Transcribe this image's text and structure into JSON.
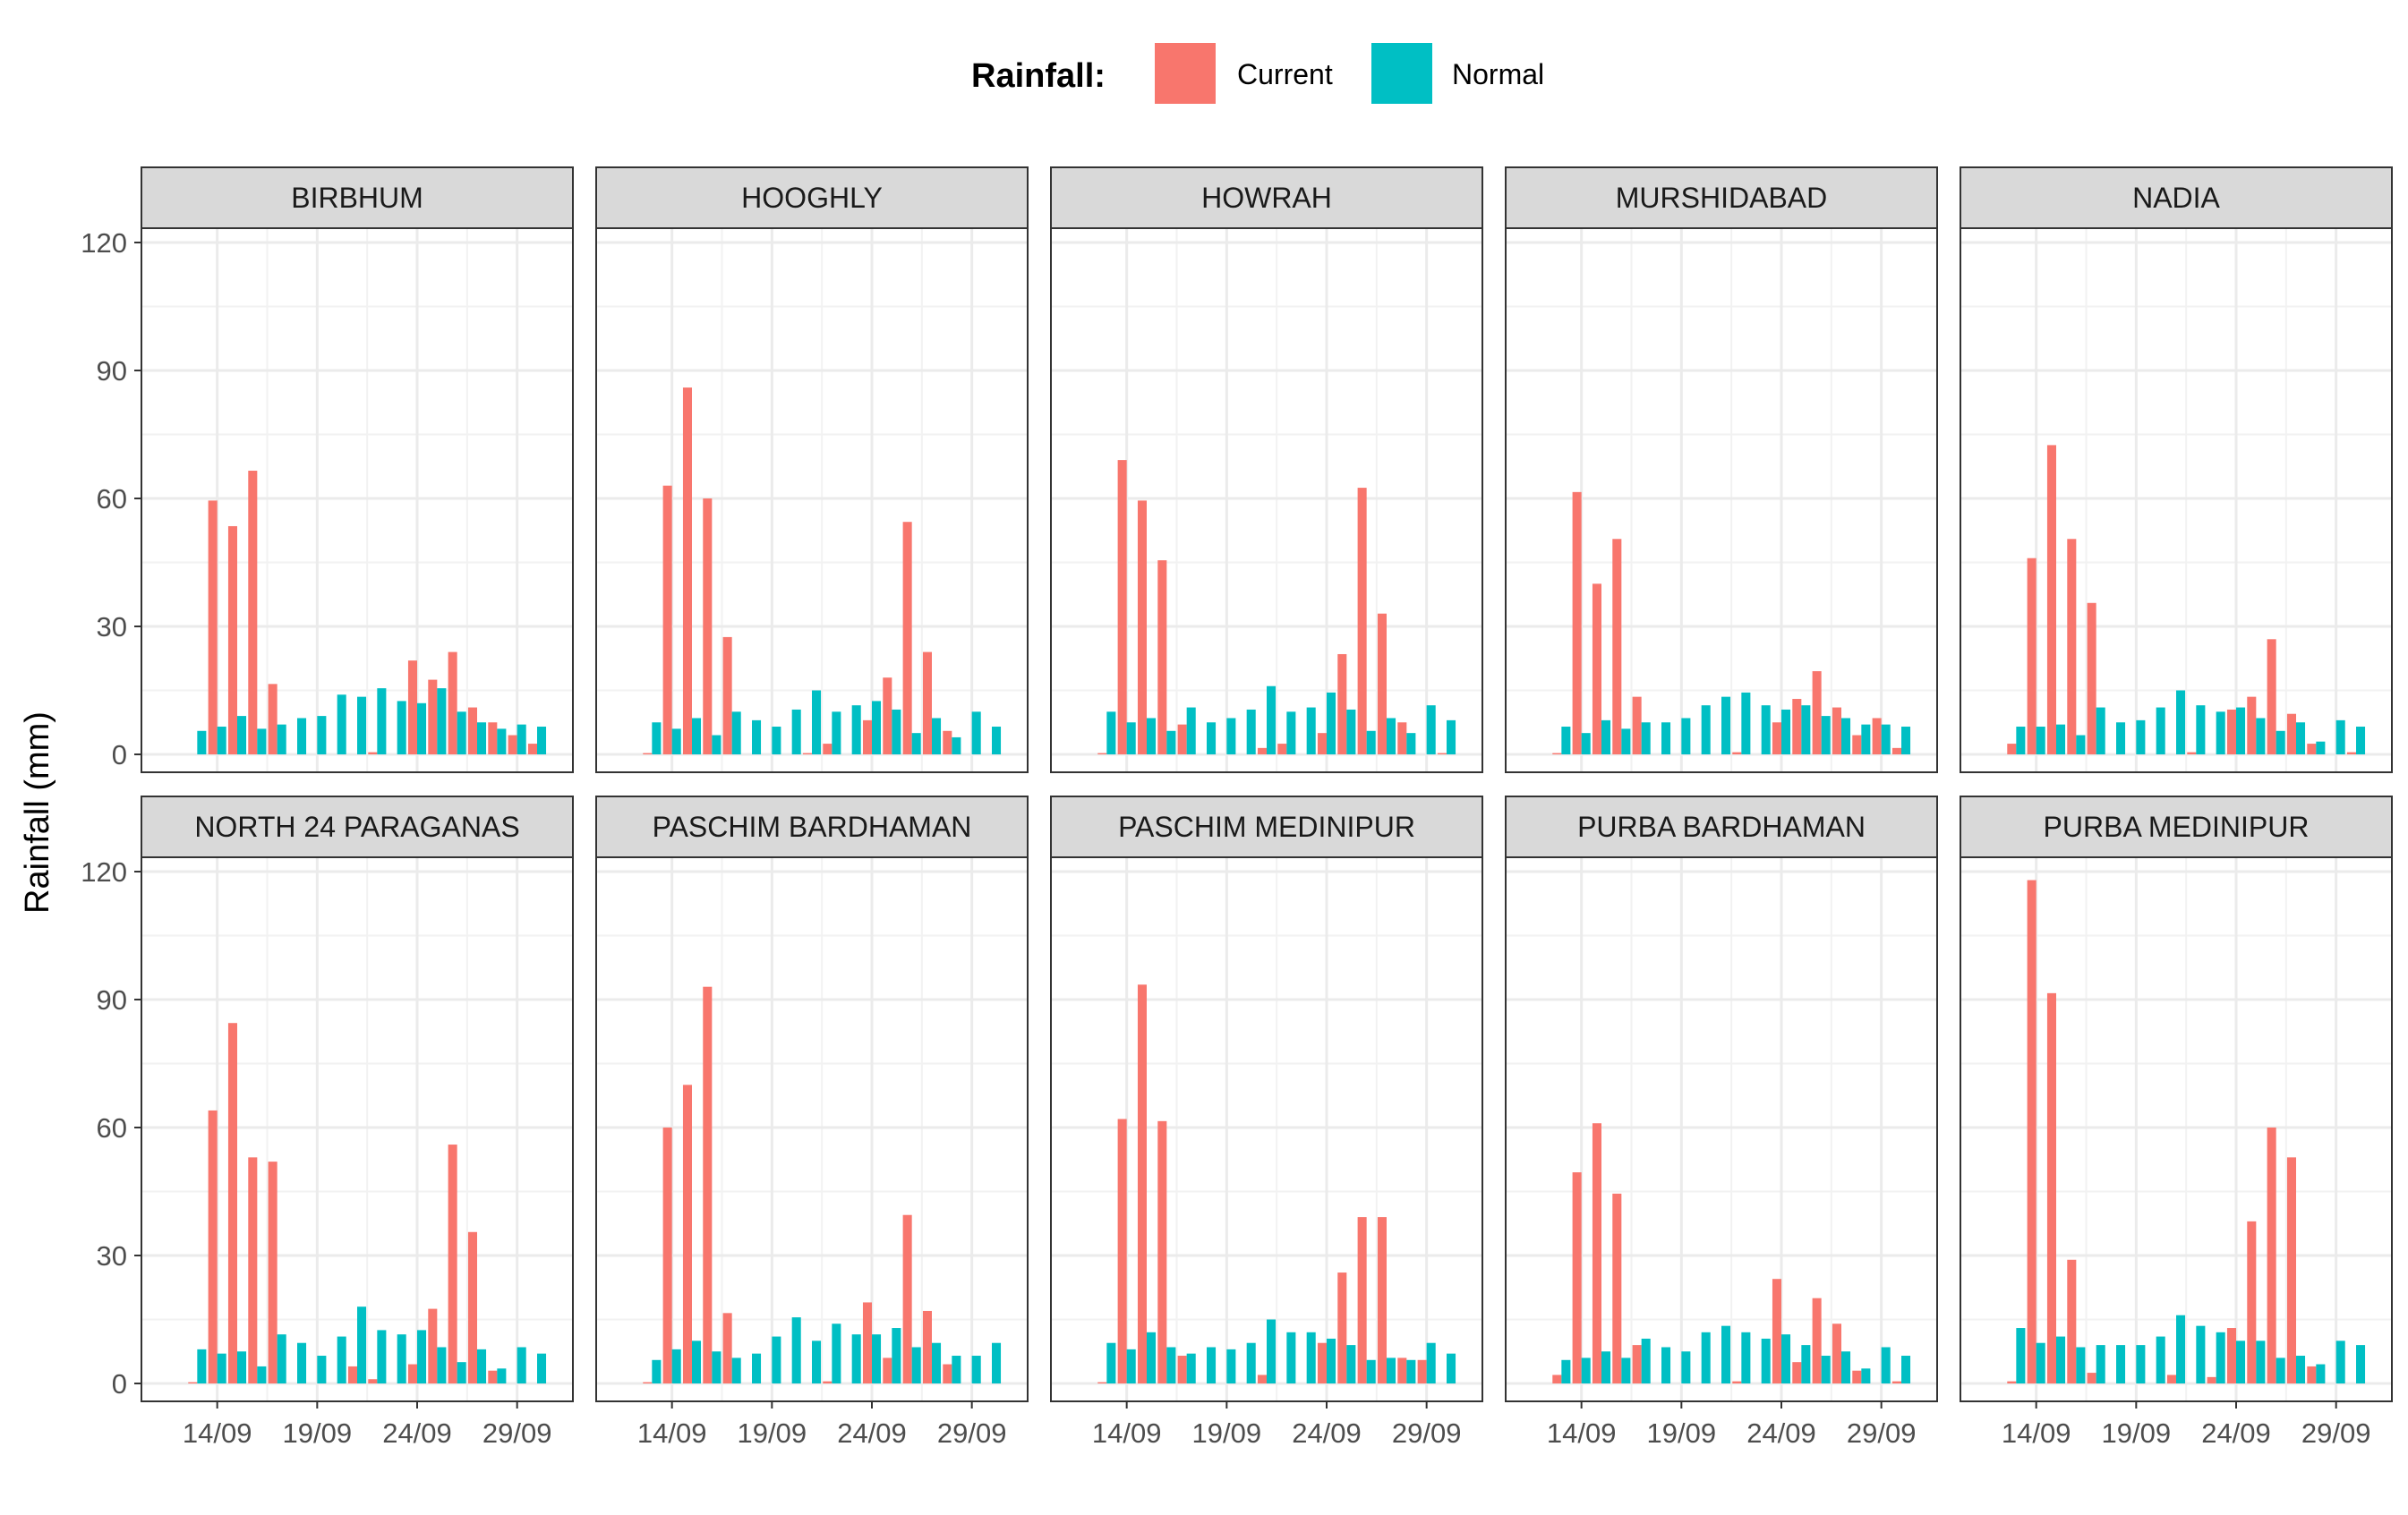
{
  "chart_data": {
    "type": "bar",
    "facet_by": "district",
    "layout": {
      "rows": 2,
      "cols": 5
    },
    "ylabel": "Rainfall (mm)",
    "xlabel": "",
    "ylim": [
      0,
      120
    ],
    "yticks": [
      0,
      30,
      60,
      90,
      120
    ],
    "xlim": [
      "2024-09-12",
      "2024-09-30"
    ],
    "xticks": [
      "2024-09-14",
      "2024-09-19",
      "2024-09-24",
      "2024-09-29"
    ],
    "xtick_labels": [
      "14/09",
      "19/09",
      "24/09",
      "29/09"
    ],
    "grid": true,
    "legend": {
      "title": "Rainfall:",
      "placement": "top",
      "entries": [
        "Current",
        "Normal"
      ]
    },
    "colors": {
      "Current": "#F8766D",
      "Normal": "#00BFC4"
    },
    "dates": [
      "2024-09-13",
      "2024-09-14",
      "2024-09-15",
      "2024-09-16",
      "2024-09-17",
      "2024-09-18",
      "2024-09-19",
      "2024-09-20",
      "2024-09-21",
      "2024-09-22",
      "2024-09-23",
      "2024-09-24",
      "2024-09-25",
      "2024-09-26",
      "2024-09-27",
      "2024-09-28",
      "2024-09-29",
      "2024-09-30"
    ],
    "panels": [
      {
        "district": "BIRBHUM",
        "current": [
          0,
          59.5,
          53.5,
          66.5,
          16.5,
          0,
          0,
          0,
          0,
          0.5,
          0,
          22,
          17.5,
          24,
          11,
          7.5,
          4.5,
          2.5
        ],
        "normal": [
          5.5,
          6.5,
          9,
          6,
          7,
          8.5,
          9,
          14,
          13.5,
          15.5,
          12.5,
          12,
          15.5,
          10,
          7.5,
          6,
          7,
          6.5
        ]
      },
      {
        "district": "HOOGHLY",
        "current": [
          0.3,
          63,
          86,
          60,
          27.5,
          0,
          0,
          0,
          0.3,
          2.5,
          0,
          8,
          18,
          54.5,
          24,
          5.5,
          0,
          0
        ],
        "normal": [
          7.5,
          6,
          8.5,
          4.5,
          10,
          8,
          6.5,
          10.5,
          15,
          10,
          11.5,
          12.5,
          10.5,
          5,
          8.5,
          4,
          10,
          6.5
        ]
      },
      {
        "district": "HOWRAH",
        "current": [
          0.3,
          69,
          59.5,
          45.5,
          7,
          0,
          0,
          0,
          1.5,
          2.5,
          0,
          5,
          23.5,
          62.5,
          33,
          7.5,
          0,
          0.3
        ],
        "normal": [
          10,
          7.5,
          8.5,
          5.5,
          11,
          7.5,
          8.5,
          10.5,
          16,
          10,
          11,
          14.5,
          10.5,
          5.5,
          8.5,
          5,
          11.5,
          8
        ]
      },
      {
        "district": "MURSHIDABAD",
        "current": [
          0.3,
          61.5,
          40,
          50.5,
          13.5,
          0,
          0,
          0,
          0,
          0.5,
          0,
          7.5,
          13,
          19.5,
          11,
          4.5,
          8.5,
          1.5
        ],
        "normal": [
          6.5,
          5,
          8,
          6,
          7.5,
          7.5,
          8.5,
          11.5,
          13.5,
          14.5,
          11.5,
          10.5,
          11.5,
          9,
          8.5,
          7,
          7,
          6.5
        ]
      },
      {
        "district": "NADIA",
        "current": [
          2.5,
          46,
          72.5,
          50.5,
          35.5,
          0,
          0,
          0,
          0,
          0.5,
          0,
          10.5,
          13.5,
          27,
          9.5,
          2.5,
          0,
          0.5
        ],
        "normal": [
          6.5,
          6.5,
          7,
          4.5,
          11,
          7.5,
          8,
          11,
          15,
          11.5,
          10,
          11,
          8.5,
          5.5,
          7.5,
          3,
          8,
          6.5
        ]
      },
      {
        "district": "NORTH 24 PARAGANAS",
        "current": [
          0.3,
          64,
          84.5,
          53,
          52,
          0,
          0,
          0,
          4,
          1,
          0,
          4.5,
          17.5,
          56,
          35.5,
          3,
          0,
          0
        ],
        "normal": [
          8,
          7,
          7.5,
          4,
          11.5,
          9.5,
          6.5,
          11,
          18,
          12.5,
          11.5,
          12.5,
          8.5,
          5,
          8,
          3.5,
          8.5,
          7
        ]
      },
      {
        "district": "PASCHIM BARDHAMAN",
        "current": [
          0.3,
          60,
          70,
          93,
          16.5,
          0,
          0,
          0,
          0,
          0.5,
          0,
          19,
          6,
          39.5,
          17,
          4.5,
          0,
          0
        ],
        "normal": [
          5.5,
          8,
          10,
          7.5,
          6,
          7,
          11,
          15.5,
          10,
          14,
          11.5,
          11.5,
          13,
          8.5,
          9.5,
          6.5,
          6.5,
          9.5
        ]
      },
      {
        "district": "PASCHIM MEDINIPUR",
        "current": [
          0.3,
          62,
          93.5,
          61.5,
          6.5,
          0,
          0,
          0,
          2,
          0,
          0,
          9.5,
          26,
          39,
          39,
          6,
          5.5,
          0
        ],
        "normal": [
          9.5,
          8,
          12,
          8.5,
          7,
          8.5,
          8,
          9.5,
          15,
          12,
          12,
          10.5,
          9,
          5.5,
          6,
          5.5,
          9.5,
          7
        ]
      },
      {
        "district": "PURBA BARDHAMAN",
        "current": [
          2,
          49.5,
          61,
          44.5,
          9,
          0,
          0,
          0,
          0,
          0.5,
          0,
          24.5,
          5,
          20,
          14,
          3,
          0,
          0.5
        ],
        "normal": [
          5.5,
          6,
          7.5,
          6,
          10.5,
          8.5,
          7.5,
          12,
          13.5,
          12,
          10.5,
          11.5,
          9,
          6.5,
          7.5,
          3.5,
          8.5,
          6.5
        ]
      },
      {
        "district": "PURBA MEDINIPUR",
        "current": [
          0.5,
          118,
          91.5,
          29,
          2.5,
          0,
          0,
          0,
          2,
          0,
          1.5,
          13,
          38,
          60,
          53,
          4,
          0,
          0
        ],
        "normal": [
          13,
          9.5,
          11,
          8.5,
          9,
          9,
          9,
          11,
          16,
          13.5,
          12,
          10,
          10,
          6,
          6.5,
          4.5,
          10,
          9
        ]
      }
    ]
  }
}
